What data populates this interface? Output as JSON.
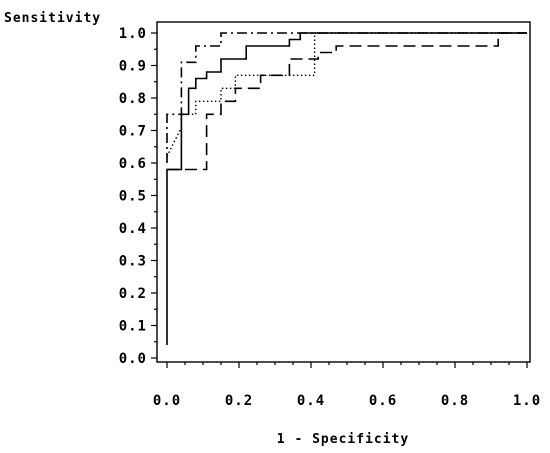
{
  "chart_data": {
    "type": "line",
    "title": "",
    "xlabel": "1 - Specificity",
    "ylabel": "Sensitivity",
    "xlim": [
      0,
      1
    ],
    "ylim": [
      0,
      1
    ],
    "x_ticks": [
      "0.0",
      "0.2",
      "0.4",
      "0.6",
      "0.8",
      "1.0"
    ],
    "y_ticks": [
      "0.0",
      "0.1",
      "0.2",
      "0.3",
      "0.4",
      "0.5",
      "0.6",
      "0.7",
      "0.8",
      "0.9",
      "1.0"
    ],
    "grid": false,
    "legend": "none",
    "series": [
      {
        "style": "solid",
        "color": "#000000",
        "points": [
          [
            0.0,
            0.04
          ],
          [
            0.0,
            0.58
          ],
          [
            0.04,
            0.58
          ],
          [
            0.04,
            0.75
          ],
          [
            0.06,
            0.75
          ],
          [
            0.06,
            0.83
          ],
          [
            0.08,
            0.83
          ],
          [
            0.08,
            0.86
          ],
          [
            0.11,
            0.86
          ],
          [
            0.11,
            0.88
          ],
          [
            0.15,
            0.88
          ],
          [
            0.15,
            0.92
          ],
          [
            0.22,
            0.92
          ],
          [
            0.22,
            0.96
          ],
          [
            0.34,
            0.96
          ],
          [
            0.34,
            0.98
          ],
          [
            0.37,
            0.98
          ],
          [
            0.37,
            1.0
          ],
          [
            1.0,
            1.0
          ]
        ]
      },
      {
        "style": "dashed",
        "color": "#000000",
        "points": [
          [
            0.0,
            0.58
          ],
          [
            0.11,
            0.58
          ],
          [
            0.11,
            0.75
          ],
          [
            0.15,
            0.75
          ],
          [
            0.15,
            0.79
          ],
          [
            0.19,
            0.79
          ],
          [
            0.19,
            0.83
          ],
          [
            0.26,
            0.83
          ],
          [
            0.26,
            0.87
          ],
          [
            0.34,
            0.87
          ],
          [
            0.34,
            0.92
          ],
          [
            0.42,
            0.92
          ],
          [
            0.42,
            0.94
          ],
          [
            0.47,
            0.94
          ],
          [
            0.47,
            0.96
          ],
          [
            0.92,
            0.96
          ],
          [
            0.92,
            1.0
          ],
          [
            1.0,
            1.0
          ]
        ]
      },
      {
        "style": "dotted",
        "color": "#000000",
        "points": [
          [
            0.0,
            0.62
          ],
          [
            0.04,
            0.71
          ],
          [
            0.04,
            0.75
          ],
          [
            0.08,
            0.75
          ],
          [
            0.08,
            0.79
          ],
          [
            0.15,
            0.79
          ],
          [
            0.15,
            0.83
          ],
          [
            0.19,
            0.83
          ],
          [
            0.19,
            0.87
          ],
          [
            0.41,
            0.87
          ],
          [
            0.41,
            1.0
          ],
          [
            1.0,
            1.0
          ]
        ]
      },
      {
        "style": "dashdot",
        "color": "#000000",
        "points": [
          [
            0.0,
            0.6
          ],
          [
            0.0,
            0.75
          ],
          [
            0.04,
            0.75
          ],
          [
            0.04,
            0.91
          ],
          [
            0.08,
            0.91
          ],
          [
            0.08,
            0.96
          ],
          [
            0.15,
            0.96
          ],
          [
            0.15,
            1.0
          ],
          [
            1.0,
            1.0
          ]
        ]
      }
    ]
  }
}
